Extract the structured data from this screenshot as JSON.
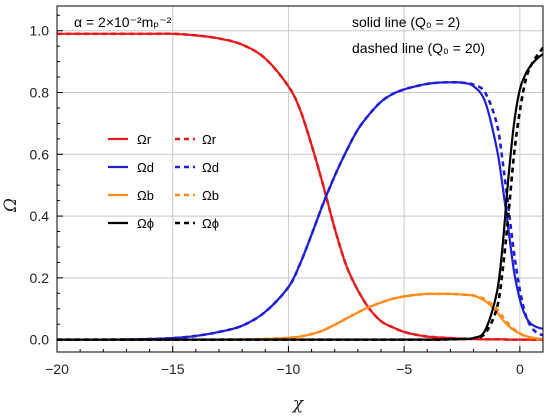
{
  "chart_data": {
    "type": "line",
    "title": "",
    "xlabel": "χ",
    "ylabel": "Ω",
    "xlim": [
      -20,
      1
    ],
    "ylim": [
      -0.04,
      1.08
    ],
    "grid": true,
    "xticks": [
      -20,
      -15,
      -10,
      -5,
      0
    ],
    "yticks": [
      0.0,
      0.2,
      0.4,
      0.6,
      0.8,
      1.0
    ],
    "xtick_labels": [
      "−20",
      "−15",
      "−10",
      "−5",
      "0"
    ],
    "ytick_labels": [
      "0.0",
      "0.2",
      "0.4",
      "0.6",
      "0.8",
      "1.0"
    ],
    "annotations": {
      "alpha": "α = 2×10⁻²mₚ⁻²",
      "solid": "solid line (Q₀ = 2)",
      "dashed": "dashed line (Q₀ = 20)"
    },
    "legend_position": "center-left",
    "x": [
      -20,
      -18,
      -16,
      -15,
      -14,
      -13,
      -12,
      -11,
      -10,
      -9.5,
      -9,
      -8.5,
      -8,
      -7.5,
      -7,
      -6.5,
      -6,
      -5.5,
      -5,
      -4.5,
      -4,
      -3.5,
      -3,
      -2.5,
      -2,
      -1.5,
      -1,
      -0.75,
      -0.5,
      -0.25,
      0,
      0.25,
      0.5,
      0.75,
      1
    ],
    "series": [
      {
        "name": "Ωr",
        "style": "solid",
        "color": "#e41a1c",
        "values": [
          0.99,
          0.99,
          0.99,
          0.99,
          0.985,
          0.975,
          0.955,
          0.91,
          0.82,
          0.745,
          0.63,
          0.5,
          0.36,
          0.24,
          0.16,
          0.1,
          0.06,
          0.04,
          0.025,
          0.016,
          0.01,
          0.007,
          0.005,
          0.003,
          0.002,
          0.001,
          0.001,
          0.001,
          0.0,
          0.0,
          0.0,
          0.0,
          0.0,
          0.0,
          0.0
        ]
      },
      {
        "name": "Ωr",
        "style": "dashed",
        "color": "#e41a1c",
        "values": [
          0.99,
          0.99,
          0.99,
          0.99,
          0.985,
          0.975,
          0.955,
          0.91,
          0.82,
          0.745,
          0.63,
          0.5,
          0.36,
          0.24,
          0.16,
          0.1,
          0.06,
          0.04,
          0.025,
          0.016,
          0.01,
          0.007,
          0.005,
          0.003,
          0.002,
          0.001,
          0.001,
          0.001,
          0.0,
          0.0,
          0.0,
          0.0,
          0.0,
          0.0,
          0.0
        ]
      },
      {
        "name": "Ωd",
        "style": "solid",
        "color": "#1f1fd6",
        "values": [
          0.0,
          0.0,
          0.002,
          0.005,
          0.012,
          0.025,
          0.045,
          0.09,
          0.17,
          0.245,
          0.34,
          0.44,
          0.53,
          0.61,
          0.68,
          0.73,
          0.77,
          0.795,
          0.81,
          0.82,
          0.828,
          0.832,
          0.833,
          0.832,
          0.82,
          0.77,
          0.62,
          0.5,
          0.36,
          0.22,
          0.13,
          0.075,
          0.05,
          0.04,
          0.035
        ]
      },
      {
        "name": "Ωd",
        "style": "dashed",
        "color": "#1f1fd6",
        "values": [
          0.0,
          0.0,
          0.002,
          0.005,
          0.012,
          0.025,
          0.045,
          0.09,
          0.17,
          0.245,
          0.34,
          0.44,
          0.53,
          0.61,
          0.68,
          0.73,
          0.77,
          0.795,
          0.81,
          0.82,
          0.828,
          0.832,
          0.833,
          0.832,
          0.825,
          0.8,
          0.7,
          0.58,
          0.43,
          0.28,
          0.16,
          0.08,
          0.04,
          0.022,
          0.014
        ]
      },
      {
        "name": "Ωb",
        "style": "solid",
        "color": "#ff8c1a",
        "values": [
          0.0,
          0.0,
          0.0,
          0.0,
          0.0,
          0.0,
          0.001,
          0.002,
          0.006,
          0.01,
          0.018,
          0.03,
          0.048,
          0.068,
          0.088,
          0.106,
          0.12,
          0.132,
          0.14,
          0.145,
          0.148,
          0.148,
          0.148,
          0.146,
          0.142,
          0.125,
          0.09,
          0.065,
          0.045,
          0.03,
          0.02,
          0.012,
          0.007,
          0.004,
          0.002
        ]
      },
      {
        "name": "Ωb",
        "style": "dashed",
        "color": "#ff8c1a",
        "values": [
          0.0,
          0.0,
          0.0,
          0.0,
          0.0,
          0.0,
          0.001,
          0.002,
          0.006,
          0.01,
          0.018,
          0.03,
          0.048,
          0.068,
          0.088,
          0.106,
          0.12,
          0.132,
          0.14,
          0.145,
          0.148,
          0.148,
          0.148,
          0.146,
          0.143,
          0.13,
          0.1,
          0.075,
          0.052,
          0.034,
          0.02,
          0.01,
          0.005,
          0.003,
          0.001
        ]
      },
      {
        "name": "Ωϕ",
        "style": "solid",
        "color": "#000000",
        "values": [
          0.0,
          0.0,
          0.0,
          0.0,
          0.0,
          0.0,
          0.0,
          0.0,
          0.0,
          0.0,
          0.0,
          0.0,
          0.0,
          0.0,
          0.0,
          0.0,
          0.0,
          0.0,
          0.0,
          0.0,
          0.0,
          0.0,
          0.001,
          0.002,
          0.005,
          0.03,
          0.15,
          0.3,
          0.52,
          0.7,
          0.81,
          0.86,
          0.89,
          0.91,
          0.925
        ]
      },
      {
        "name": "Ωϕ",
        "style": "dashed",
        "color": "#000000",
        "values": [
          0.0,
          0.0,
          0.0,
          0.0,
          0.0,
          0.0,
          0.0,
          0.0,
          0.0,
          0.0,
          0.0,
          0.0,
          0.0,
          0.0,
          0.0,
          0.0,
          0.0,
          0.0,
          0.0,
          0.0,
          0.0,
          0.0,
          0.001,
          0.002,
          0.005,
          0.02,
          0.1,
          0.22,
          0.4,
          0.6,
          0.74,
          0.84,
          0.89,
          0.92,
          0.945
        ]
      }
    ]
  }
}
